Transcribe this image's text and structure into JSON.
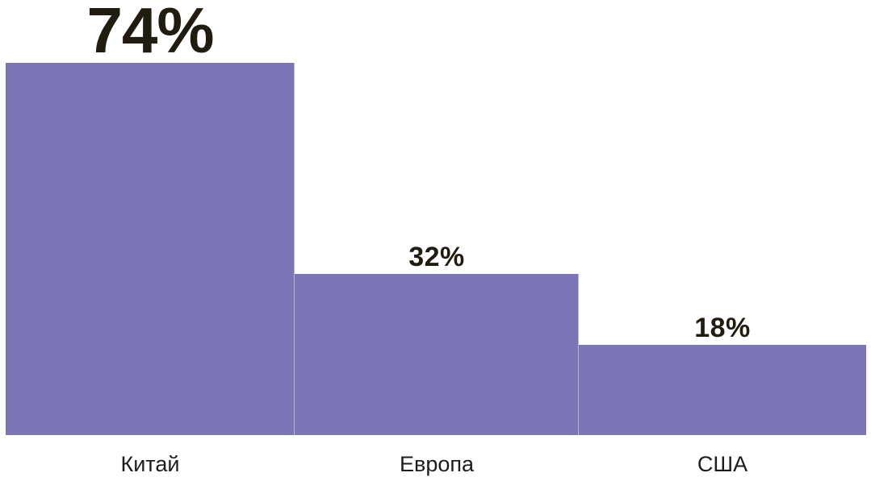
{
  "chart_data": {
    "type": "bar",
    "categories": [
      "Китай",
      "Европа",
      "США"
    ],
    "values": [
      74,
      32,
      18
    ],
    "value_labels": [
      "74%",
      "32%",
      "18%"
    ],
    "ylim": [
      0,
      100
    ],
    "grid": false,
    "legend": false,
    "bar_color": "#7b75b6",
    "value_label_color": "#211c10",
    "category_label_color": "#1d1c19",
    "emphasized_value_index": 0
  }
}
